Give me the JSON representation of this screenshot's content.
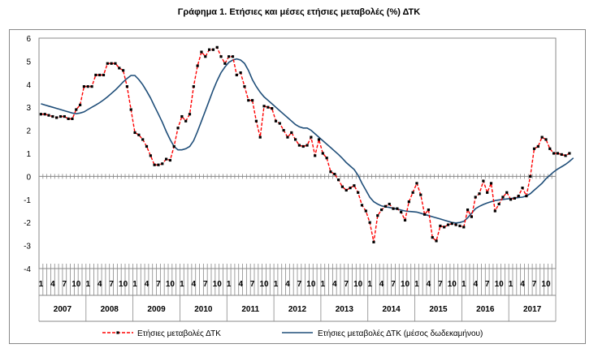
{
  "chart_data": {
    "type": "line",
    "title": "Γράφημα 1. Ετήσιες και μέσες ετήσιες μεταβολές (%) ΔΤΚ",
    "ylim": [
      -4,
      6
    ],
    "yticks": [
      "6",
      "5",
      "4",
      "3",
      "2",
      "1",
      "0",
      "-1",
      "-2",
      "-3",
      "-4"
    ],
    "month_ticks": [
      "1",
      "4",
      "7",
      "10"
    ],
    "years": [
      "2007",
      "2008",
      "2009",
      "2010",
      "2011",
      "2012",
      "2013",
      "2014",
      "2015",
      "2016",
      "2017"
    ],
    "grid": false,
    "legend_position": "bottom",
    "series": [
      {
        "name": "Ετήσιες μεταβολές ΔΤΚ",
        "color": "#ff0000",
        "values": [
          2.7,
          2.7,
          2.65,
          2.6,
          2.55,
          2.6,
          2.6,
          2.5,
          2.5,
          2.9,
          3.1,
          3.9,
          3.9,
          3.9,
          4.4,
          4.4,
          4.4,
          4.9,
          4.9,
          4.9,
          4.7,
          4.6,
          3.9,
          2.9,
          1.9,
          1.8,
          1.6,
          1.3,
          0.9,
          0.5,
          0.5,
          0.55,
          0.75,
          0.7,
          1.3,
          2.1,
          2.6,
          2.4,
          2.7,
          3.9,
          4.8,
          5.4,
          5.2,
          5.5,
          5.5,
          5.6,
          5.2,
          4.9,
          5.2,
          5.2,
          4.4,
          4.5,
          3.9,
          3.3,
          3.3,
          2.4,
          1.7,
          3.05,
          3.0,
          2.95,
          2.4,
          2.3,
          2.0,
          1.7,
          1.9,
          1.6,
          1.35,
          1.3,
          1.35,
          1.7,
          0.9,
          1.6,
          1.0,
          0.8,
          0.2,
          0.1,
          -0.15,
          -0.45,
          -0.6,
          -0.5,
          -0.4,
          -0.7,
          -1.25,
          -1.5,
          -2.0,
          -2.85,
          -1.7,
          -1.45,
          -1.3,
          -1.2,
          -1.4,
          -1.4,
          -1.55,
          -1.9,
          -1.1,
          -0.7,
          -0.3,
          -0.8,
          -1.65,
          -1.45,
          -2.65,
          -2.8,
          -2.15,
          -2.2,
          -2.1,
          -2.05,
          -2.1,
          -2.15,
          -2.2,
          -1.45,
          -1.75,
          -0.9,
          -0.75,
          -0.2,
          -0.7,
          -0.3,
          -1.5,
          -1.2,
          -0.9,
          -0.7,
          -1.0,
          -0.95,
          -0.85,
          -0.5,
          -0.85,
          0.0,
          1.2,
          1.3,
          1.7,
          1.6,
          1.2,
          1.0,
          1.0,
          0.95,
          0.9,
          1.0
        ]
      },
      {
        "name": "Ετήσιες μεταβολές ΔΤΚ (μέσος δωδεκαμήνου)",
        "color": "#1f4e79",
        "values": [
          3.15,
          3.1,
          3.05,
          3.0,
          2.95,
          2.9,
          2.85,
          2.8,
          2.75,
          2.72,
          2.75,
          2.8,
          2.9,
          3.0,
          3.1,
          3.2,
          3.32,
          3.45,
          3.6,
          3.75,
          3.92,
          4.1,
          4.25,
          4.38,
          4.38,
          4.2,
          3.98,
          3.7,
          3.4,
          3.05,
          2.7,
          2.35,
          1.95,
          1.6,
          1.3,
          1.15,
          1.15,
          1.2,
          1.3,
          1.55,
          1.95,
          2.4,
          2.85,
          3.3,
          3.75,
          4.15,
          4.5,
          4.75,
          4.95,
          5.05,
          5.1,
          5.05,
          4.9,
          4.6,
          4.2,
          3.9,
          3.65,
          3.45,
          3.3,
          3.15,
          3.0,
          2.85,
          2.7,
          2.55,
          2.4,
          2.25,
          2.15,
          2.1,
          2.1,
          2.0,
          1.85,
          1.7,
          1.55,
          1.4,
          1.25,
          1.1,
          0.95,
          0.78,
          0.6,
          0.45,
          0.3,
          0.05,
          -0.3,
          -0.6,
          -0.9,
          -1.1,
          -1.2,
          -1.28,
          -1.32,
          -1.35,
          -1.38,
          -1.42,
          -1.46,
          -1.5,
          -1.52,
          -1.53,
          -1.55,
          -1.6,
          -1.65,
          -1.7,
          -1.75,
          -1.8,
          -1.85,
          -1.9,
          -1.95,
          -2.0,
          -2.02,
          -2.0,
          -1.95,
          -1.8,
          -1.6,
          -1.4,
          -1.3,
          -1.22,
          -1.15,
          -1.1,
          -1.05,
          -1.02,
          -1.0,
          -0.98,
          -0.96,
          -0.94,
          -0.92,
          -0.9,
          -0.85,
          -0.75,
          -0.6,
          -0.45,
          -0.3,
          -0.1,
          0.05,
          0.2,
          0.32,
          0.42,
          0.52,
          0.65,
          0.8
        ]
      }
    ]
  }
}
